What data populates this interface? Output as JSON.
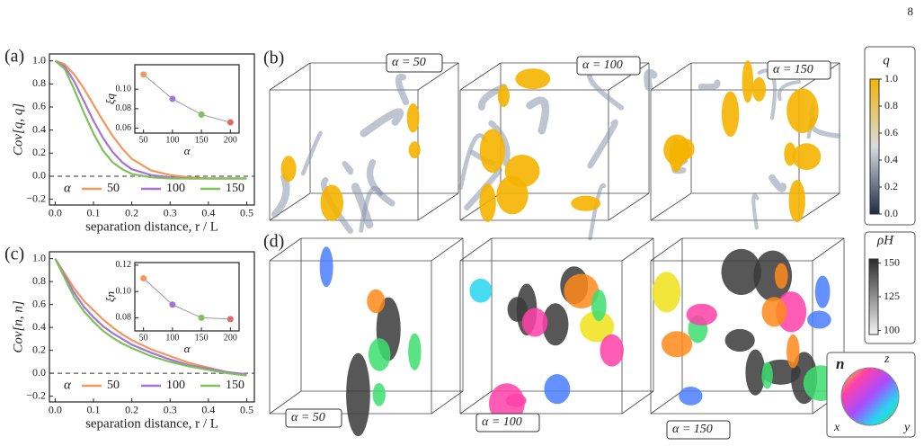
{
  "page_number": "8",
  "chart_data": [
    {
      "type": "line",
      "panel": "(a)",
      "ylabel": "Cov[q, q]",
      "xlabel": "separation distance, r / L",
      "x": [
        0,
        0.025,
        0.05,
        0.075,
        0.1,
        0.125,
        0.15,
        0.175,
        0.2,
        0.25,
        0.3,
        0.35,
        0.4,
        0.45,
        0.5
      ],
      "series": [
        {
          "name": "50",
          "color": "#f4975a",
          "values": [
            1,
            0.97,
            0.88,
            0.76,
            0.62,
            0.48,
            0.35,
            0.24,
            0.15,
            0.05,
            0.01,
            -0.01,
            -0.02,
            -0.02,
            -0.02
          ]
        },
        {
          "name": "100",
          "color": "#a672d8",
          "values": [
            1,
            0.95,
            0.82,
            0.65,
            0.48,
            0.33,
            0.21,
            0.12,
            0.06,
            0.01,
            -0.01,
            -0.02,
            -0.02,
            -0.02,
            -0.02
          ]
        },
        {
          "name": "150",
          "color": "#7cc15a",
          "values": [
            1,
            0.93,
            0.75,
            0.55,
            0.37,
            0.22,
            0.12,
            0.06,
            0.02,
            -0.01,
            -0.02,
            -0.02,
            -0.02,
            -0.02,
            -0.02
          ]
        }
      ],
      "xlim": [
        -0.015,
        0.52
      ],
      "ylim": [
        -0.25,
        1.06
      ],
      "xticks": [
        {
          "value": 0,
          "label": "0.0"
        },
        0.1,
        0.2,
        0.3,
        0.4,
        0.5
      ],
      "yticks": [
        {
          "value": -0.2,
          "label": "−0.2"
        },
        {
          "value": 0,
          "label": "0.0"
        },
        0.2,
        0.4,
        0.6,
        0.8,
        {
          "value": 1,
          "label": "1.0"
        }
      ],
      "hline": 0,
      "legend_title": "α",
      "legend": "lower center"
    },
    {
      "type": "line",
      "markers": true,
      "xlabel": "α",
      "ylabel": "ξq",
      "x": [
        50,
        100,
        150,
        200
      ],
      "series": [
        {
          "color": "#9a9a9a",
          "values": [
            0.115,
            0.09,
            0.074,
            0.066
          ]
        }
      ],
      "point_colors": [
        "#f4975a",
        "#a672d8",
        "#7cc15a",
        "#e06a6a"
      ],
      "xlim": [
        35,
        215
      ],
      "ylim": [
        0.055,
        0.125
      ],
      "xticks": [
        50,
        100,
        150,
        200
      ],
      "yticks": [
        0.06,
        0.08,
        {
          "value": 0.1,
          "label": "0.10"
        }
      ]
    },
    {
      "type": "line",
      "panel": "(c)",
      "ylabel": "Cov[n, n]",
      "xlabel": "separation distance, r / L",
      "x": [
        0,
        0.025,
        0.05,
        0.075,
        0.1,
        0.125,
        0.15,
        0.175,
        0.2,
        0.25,
        0.3,
        0.35,
        0.4,
        0.45,
        0.5
      ],
      "series": [
        {
          "name": "50",
          "color": "#f4975a",
          "values": [
            1,
            0.87,
            0.74,
            0.63,
            0.55,
            0.47,
            0.4,
            0.34,
            0.29,
            0.21,
            0.15,
            0.09,
            0.05,
            0.01,
            -0.01
          ]
        },
        {
          "name": "100",
          "color": "#a672d8",
          "values": [
            1,
            0.85,
            0.7,
            0.58,
            0.49,
            0.41,
            0.35,
            0.3,
            0.25,
            0.18,
            0.12,
            0.07,
            0.04,
            0.01,
            -0.01
          ]
        },
        {
          "name": "150",
          "color": "#7cc15a",
          "values": [
            1,
            0.83,
            0.66,
            0.54,
            0.45,
            0.37,
            0.31,
            0.26,
            0.22,
            0.15,
            0.1,
            0.06,
            0.03,
            0,
            -0.02
          ]
        }
      ],
      "xlim": [
        -0.015,
        0.52
      ],
      "ylim": [
        -0.25,
        1.06
      ],
      "xticks": [
        {
          "value": 0,
          "label": "0.0"
        },
        0.1,
        0.2,
        0.3,
        0.4,
        0.5
      ],
      "yticks": [
        {
          "value": -0.2,
          "label": "−0.2"
        },
        {
          "value": 0,
          "label": "0.0"
        },
        0.2,
        0.4,
        0.6,
        0.8,
        {
          "value": 1,
          "label": "1.0"
        }
      ],
      "hline": 0,
      "legend_title": "α",
      "legend": "lower center"
    },
    {
      "type": "line",
      "markers": true,
      "xlabel": "α",
      "ylabel": "ξn",
      "x": [
        50,
        100,
        150,
        200
      ],
      "series": [
        {
          "color": "#9a9a9a",
          "values": [
            0.11,
            0.09,
            0.08,
            0.079
          ]
        }
      ],
      "point_colors": [
        "#f4975a",
        "#a672d8",
        "#7cc15a",
        "#e06a6a"
      ],
      "xlim": [
        35,
        215
      ],
      "ylim": [
        0.07,
        0.122
      ],
      "xticks": [
        50,
        100,
        150,
        200
      ],
      "yticks": [
        0.08,
        {
          "value": 0.1,
          "label": "0.10"
        },
        0.12
      ]
    }
  ],
  "panels": {
    "b": {
      "label": "(b)",
      "cubes": [
        "α = 50",
        "α = 100",
        "α = 150"
      ]
    },
    "d": {
      "label": "(d)",
      "cubes": [
        "α = 50",
        "α = 100",
        "α = 150"
      ]
    }
  },
  "colorbars": [
    {
      "label": "q",
      "lim": [
        0,
        1
      ],
      "ticks": [
        {
          "value": 0,
          "label": "0.0"
        },
        0.2,
        0.4,
        0.6,
        0.8,
        {
          "value": 1,
          "label": "1.0"
        }
      ],
      "colors": [
        "#1f2b45",
        "#d8dbe0",
        "#f5b400"
      ]
    },
    {
      "label": "ρH",
      "lim": [
        97,
        153
      ],
      "ticks": [
        100,
        125,
        150
      ],
      "colors": [
        "#f4f4f4",
        "#2c2c2c"
      ]
    }
  ],
  "orientation": {
    "label": "n",
    "axes": [
      "x",
      "y",
      "z"
    ]
  }
}
